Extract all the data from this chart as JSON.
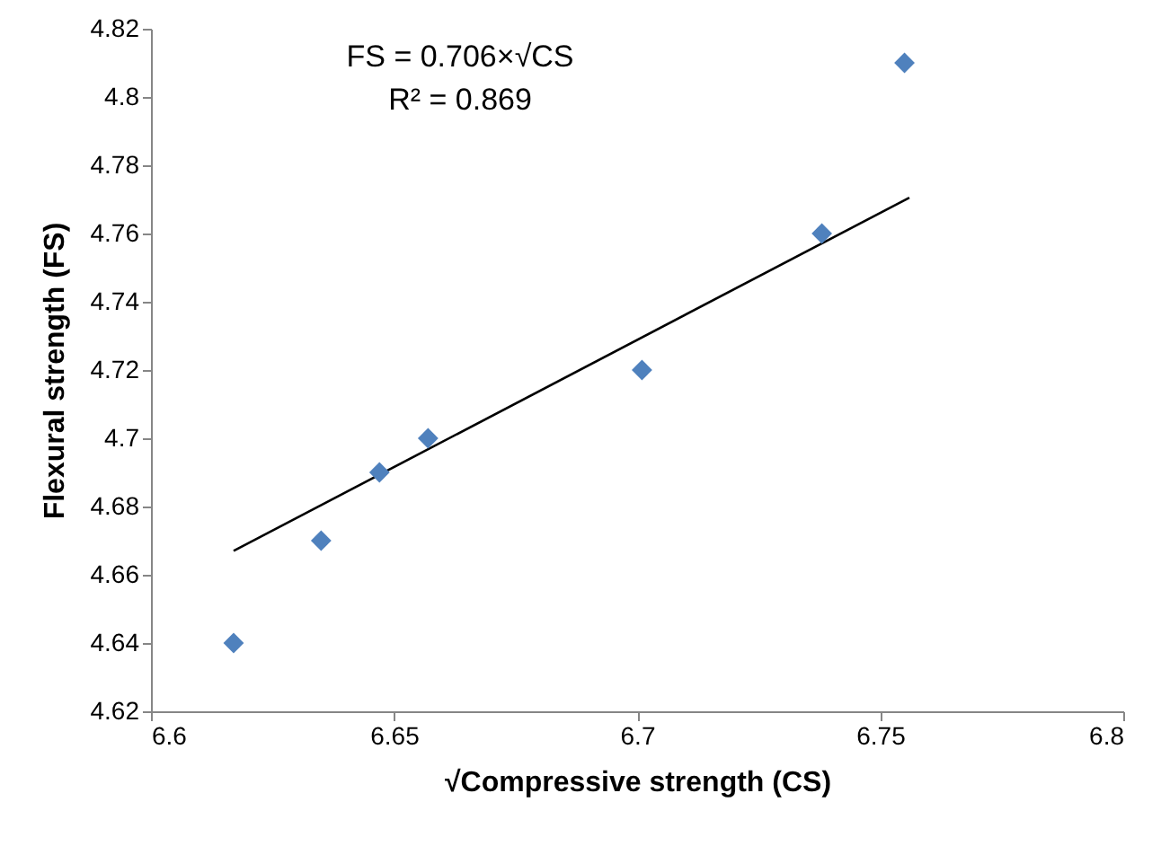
{
  "chart_data": {
    "type": "scatter",
    "xlabel": "√Compressive strength (CS)",
    "ylabel": "Flexural strength (FS)",
    "annotations": [
      "FS = 0.706×√CS",
      "R² = 0.869"
    ],
    "grid": false,
    "xlim": [
      6.6,
      6.8
    ],
    "xticks": [
      6.6,
      6.65,
      6.7,
      6.75,
      6.8
    ],
    "ylim": [
      4.62,
      4.82
    ],
    "yticks": [
      4.62,
      4.64,
      4.66,
      4.68,
      4.7,
      4.72,
      4.74,
      4.76,
      4.78,
      4.8,
      4.82
    ],
    "series": [
      {
        "type": "scatter",
        "marker": "diamond",
        "color": "#4f81bd",
        "x": [
          6.617,
          6.635,
          6.647,
          6.657,
          6.701,
          6.738,
          6.755
        ],
        "values": [
          4.64,
          4.67,
          4.69,
          4.7,
          4.72,
          4.76,
          4.81
        ]
      },
      {
        "type": "line",
        "color": "#000000",
        "x": [
          6.617,
          6.756
        ],
        "values": [
          4.667,
          4.7705
        ]
      }
    ]
  }
}
